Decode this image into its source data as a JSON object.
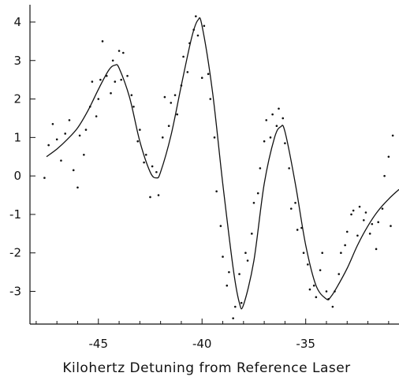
{
  "chart_data": {
    "type": "scatter",
    "title": "",
    "xlabel": "Kilohertz  Detuning  from  Reference  Laser",
    "ylabel": "",
    "xlim": [
      -48.3,
      -30.5
    ],
    "ylim": [
      -3.85,
      4.45
    ],
    "x_ticks": [
      -45,
      -40,
      -35
    ],
    "x_tick_labels": [
      "-45",
      "-40",
      "-35"
    ],
    "y_ticks": [
      4,
      3,
      2,
      1,
      0,
      -1,
      -2,
      -3
    ],
    "y_tick_labels": [
      "4",
      "3",
      "2",
      "1",
      "0",
      "-1",
      "-2",
      "-3"
    ],
    "grid": false,
    "legend": "none",
    "colors": {
      "curve": "#111111",
      "points": "#111111",
      "axes": "#111111"
    },
    "fit_curve": {
      "x": [
        -47.5,
        -47.0,
        -46.5,
        -46.0,
        -45.5,
        -45.0,
        -44.5,
        -44.2,
        -44.0,
        -43.5,
        -43.0,
        -42.5,
        -42.2,
        -42.0,
        -41.5,
        -41.0,
        -40.5,
        -40.2,
        -40.0,
        -39.5,
        -39.0,
        -38.5,
        -38.2,
        -38.0,
        -37.5,
        -37.0,
        -36.5,
        -36.2,
        -36.0,
        -35.5,
        -35.0,
        -34.5,
        -34.0,
        -33.8,
        -33.5,
        -33.0,
        -32.5,
        -32.0,
        -31.5,
        -31.0,
        -30.5
      ],
      "y": [
        0.5,
        0.7,
        0.95,
        1.25,
        1.7,
        2.25,
        2.75,
        2.88,
        2.8,
        2.05,
        0.9,
        0.1,
        -0.05,
        0.1,
        1.05,
        2.35,
        3.6,
        4.05,
        3.9,
        2.2,
        -0.2,
        -2.4,
        -3.3,
        -3.35,
        -2.2,
        -0.2,
        1.0,
        1.28,
        1.15,
        -0.2,
        -1.8,
        -2.85,
        -3.2,
        -3.15,
        -2.9,
        -2.4,
        -1.8,
        -1.3,
        -0.9,
        -0.6,
        -0.35
      ]
    },
    "points": {
      "x": [
        -47.6,
        -47.4,
        -47.2,
        -47.0,
        -46.8,
        -46.6,
        -46.4,
        -46.2,
        -46.0,
        -45.9,
        -45.7,
        -45.6,
        -45.4,
        -45.3,
        -45.1,
        -45.0,
        -44.9,
        -44.8,
        -44.6,
        -44.4,
        -44.3,
        -44.2,
        -44.0,
        -43.9,
        -43.8,
        -43.6,
        -43.4,
        -43.3,
        -43.1,
        -43.0,
        -42.8,
        -42.7,
        -42.5,
        -42.4,
        -42.2,
        -42.1,
        -41.9,
        -41.8,
        -41.6,
        -41.5,
        -41.3,
        -41.2,
        -41.0,
        -40.9,
        -40.7,
        -40.6,
        -40.4,
        -40.3,
        -40.2,
        -40.0,
        -39.9,
        -39.7,
        -39.6,
        -39.4,
        -39.3,
        -39.1,
        -39.0,
        -38.8,
        -38.7,
        -38.5,
        -38.4,
        -38.2,
        -38.1,
        -37.9,
        -37.8,
        -37.6,
        -37.5,
        -37.3,
        -37.2,
        -37.0,
        -36.9,
        -36.7,
        -36.6,
        -36.4,
        -36.3,
        -36.1,
        -36.0,
        -35.8,
        -35.7,
        -35.5,
        -35.4,
        -35.2,
        -35.1,
        -34.9,
        -34.8,
        -34.6,
        -34.5,
        -34.3,
        -34.2,
        -34.0,
        -33.9,
        -33.7,
        -33.6,
        -33.4,
        -33.3,
        -33.1,
        -33.0,
        -32.8,
        -32.7,
        -32.5,
        -32.4,
        -32.2,
        -32.1,
        -31.9,
        -31.8,
        -31.6,
        -31.5,
        -31.3,
        -31.2,
        -31.0,
        -30.9,
        -30.8
      ],
      "y": [
        -0.05,
        0.8,
        1.35,
        0.95,
        0.4,
        1.1,
        1.45,
        0.15,
        -0.3,
        1.05,
        0.55,
        1.2,
        1.8,
        2.45,
        1.55,
        2.0,
        2.5,
        3.5,
        2.6,
        2.15,
        3.0,
        2.45,
        3.25,
        2.5,
        3.2,
        2.6,
        2.1,
        1.8,
        0.9,
        1.2,
        0.35,
        0.55,
        -0.55,
        0.25,
        0.1,
        -0.5,
        1.0,
        2.05,
        1.3,
        1.9,
        2.1,
        1.6,
        2.35,
        3.1,
        2.7,
        3.45,
        3.8,
        4.15,
        3.65,
        2.55,
        3.9,
        2.65,
        2.0,
        1.0,
        -0.4,
        -1.3,
        -2.1,
        -2.85,
        -2.5,
        -3.7,
        -3.4,
        -2.55,
        -3.3,
        -2.0,
        -2.2,
        -1.5,
        -0.7,
        -0.45,
        0.2,
        0.9,
        1.45,
        1.0,
        1.6,
        1.3,
        1.75,
        1.5,
        0.85,
        0.2,
        -0.85,
        -0.7,
        -1.4,
        -1.35,
        -2.0,
        -2.3,
        -2.95,
        -2.85,
        -3.15,
        -2.45,
        -2.0,
        -3.0,
        -3.2,
        -3.4,
        -3.0,
        -2.55,
        -2.0,
        -1.8,
        -1.45,
        -1.0,
        -0.9,
        -1.55,
        -0.8,
        -1.15,
        -0.95,
        -1.5,
        -1.25,
        -1.9,
        -1.2,
        -0.85,
        0.0,
        0.5,
        -1.3,
        1.05
      ]
    }
  }
}
